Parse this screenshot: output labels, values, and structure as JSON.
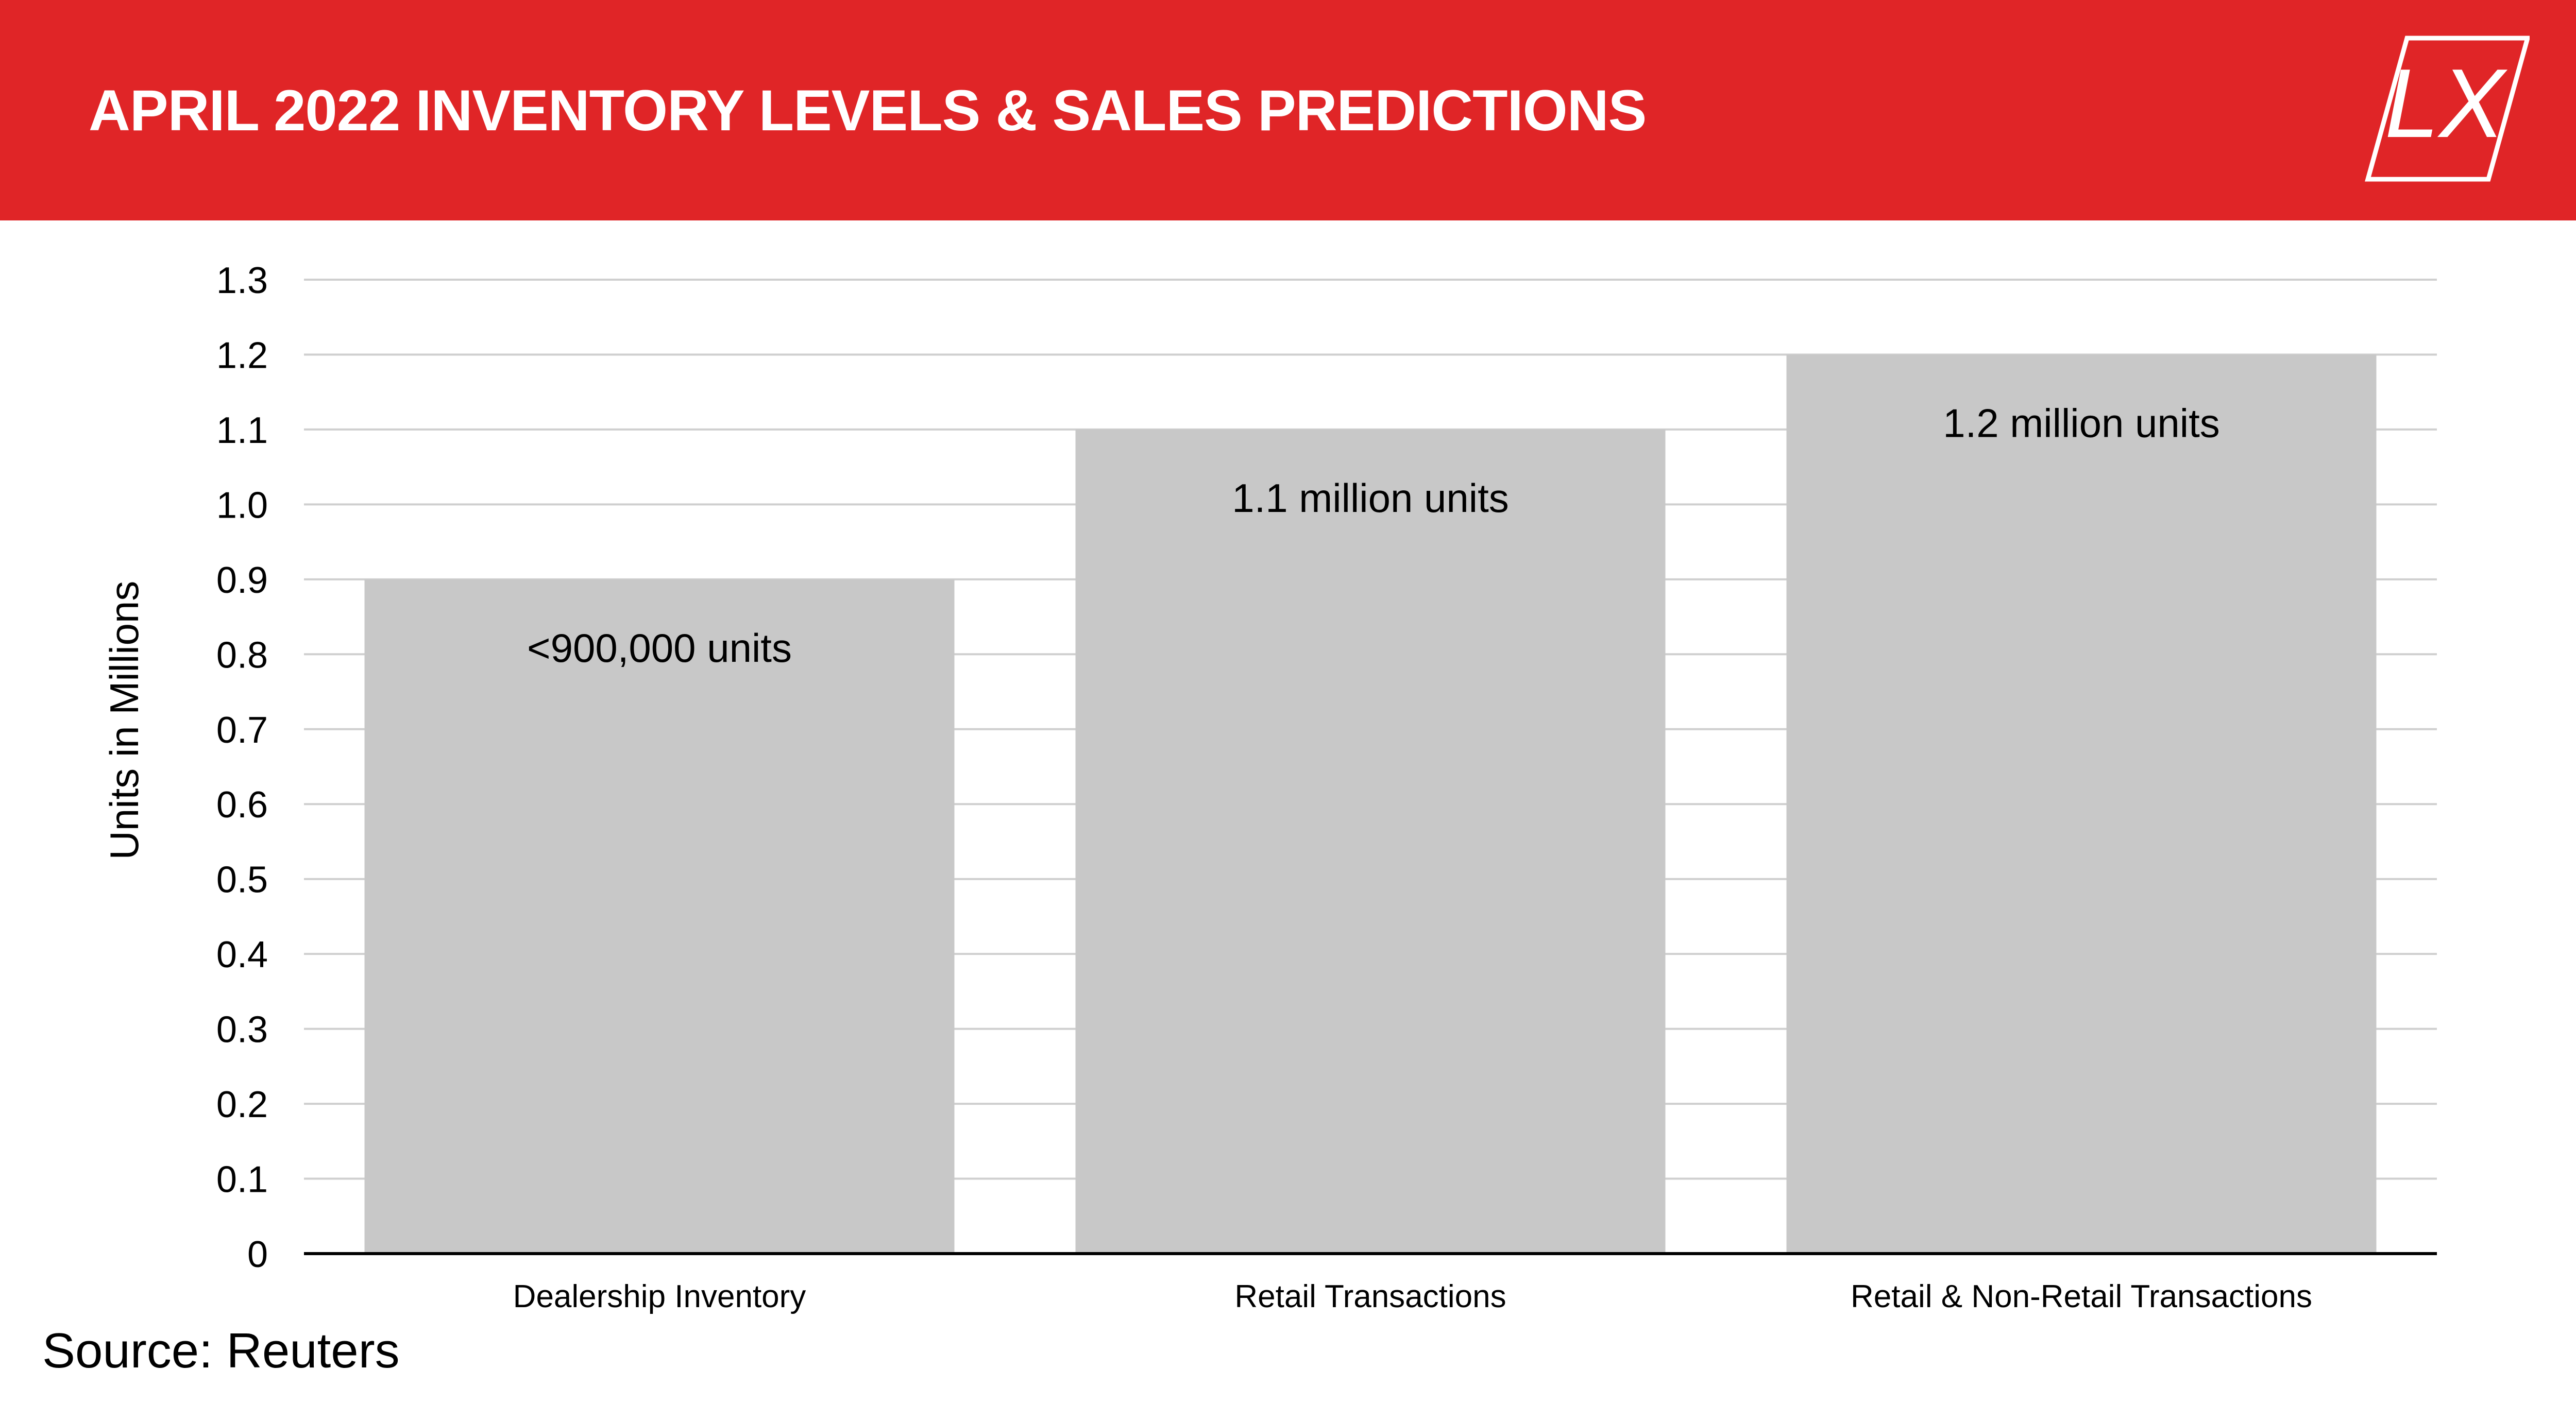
{
  "header": {
    "title": "APRIL 2022 INVENTORY LEVELS & SALES PREDICTIONS",
    "logo_text": "LX",
    "background_color": "#e02527"
  },
  "chart_data": {
    "type": "bar",
    "title": "APRIL 2022 INVENTORY LEVELS & SALES PREDICTIONS",
    "categories": [
      "Dealership Inventory",
      "Retail Transactions",
      "Retail & Non-Retail Transactions"
    ],
    "values": [
      0.9,
      1.1,
      1.2
    ],
    "data_labels": [
      "<900,000 units",
      "1.1 million units",
      "1.2 million units"
    ],
    "xlabel": "",
    "ylabel": "Units in Millions",
    "ylim": [
      0,
      1.3
    ],
    "yticks": [
      "0",
      "0.1",
      "0.2",
      "0.3",
      "0.4",
      "0.5",
      "0.6",
      "0.7",
      "0.8",
      "0.9",
      "1.0",
      "1.1",
      "1.2",
      "1.3"
    ],
    "grid": true,
    "bar_color": "#c8c8c8",
    "grid_color": "#cfcfcf"
  },
  "footer": {
    "source": "Source: Reuters"
  }
}
